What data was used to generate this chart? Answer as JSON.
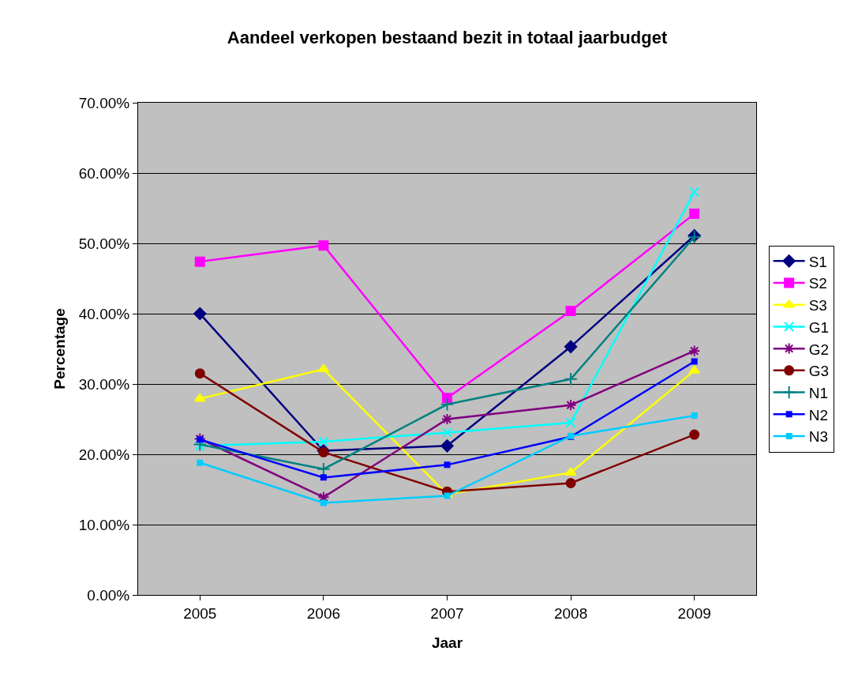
{
  "chart_data": {
    "type": "line",
    "title": "Aandeel verkopen bestaand bezit in totaal jaarbudget",
    "xlabel": "Jaar",
    "ylabel": "Percentage",
    "categories": [
      "2005",
      "2006",
      "2007",
      "2008",
      "2009"
    ],
    "series": [
      {
        "name": "S1",
        "color": "#000080",
        "marker": "diamond",
        "values": [
          40.0,
          20.5,
          21.2,
          35.3,
          51.1
        ]
      },
      {
        "name": "S2",
        "color": "#ff00ff",
        "marker": "square",
        "values": [
          47.4,
          49.7,
          28.0,
          40.4,
          54.2
        ]
      },
      {
        "name": "S3",
        "color": "#ffff00",
        "marker": "triangle",
        "values": [
          27.9,
          32.1,
          14.3,
          17.4,
          31.9
        ]
      },
      {
        "name": "G1",
        "color": "#00ffff",
        "marker": "cross",
        "values": [
          21.2,
          21.8,
          23.1,
          24.5,
          57.3
        ]
      },
      {
        "name": "G2",
        "color": "#800080",
        "marker": "cross",
        "values": [
          22.2,
          13.9,
          25.0,
          27.0,
          34.7
        ]
      },
      {
        "name": "G3",
        "color": "#800000",
        "marker": "circle",
        "values": [
          31.5,
          20.3,
          14.7,
          15.9,
          22.8
        ]
      },
      {
        "name": "N1",
        "color": "#008080",
        "marker": "cross",
        "values": [
          21.4,
          17.9,
          27.1,
          30.7,
          50.9
        ]
      },
      {
        "name": "N2",
        "color": "#0000ff",
        "marker": "square",
        "values": [
          22.1,
          16.7,
          18.5,
          22.5,
          33.2
        ]
      },
      {
        "name": "N3",
        "color": "#00ccff",
        "marker": "square",
        "values": [
          18.8,
          13.1,
          14.1,
          22.6,
          25.5
        ]
      }
    ],
    "ylim": [
      0,
      70
    ],
    "yticks": [
      {
        "value": 0,
        "label": "0.00%"
      },
      {
        "value": 10,
        "label": "10.00%"
      },
      {
        "value": 20,
        "label": "20.00%"
      },
      {
        "value": 30,
        "label": "30.00%"
      },
      {
        "value": 40,
        "label": "40.00%"
      },
      {
        "value": 50,
        "label": "50.00%"
      },
      {
        "value": 60,
        "label": "60.00%"
      },
      {
        "value": 70,
        "label": "70.00%"
      }
    ],
    "grid": "y",
    "legend": "right",
    "line_style": "solid"
  }
}
